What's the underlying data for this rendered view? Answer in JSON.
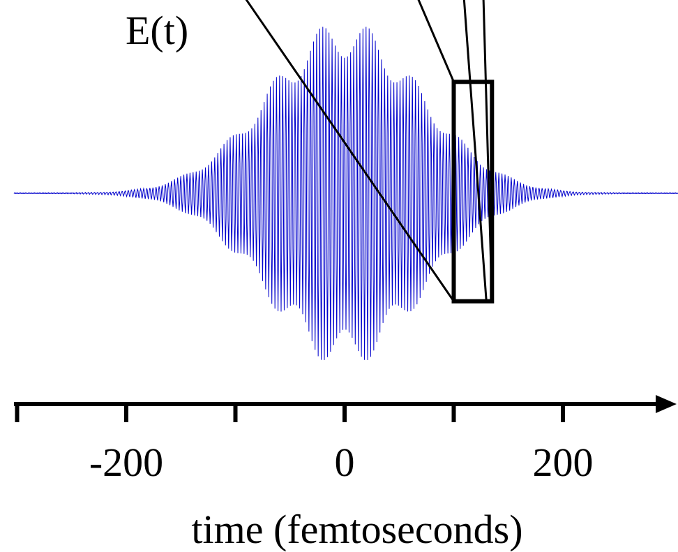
{
  "colors": {
    "waveform": "#0000cc",
    "axis": "#000000",
    "zoom_box": "#000000"
  },
  "chart_data": {
    "type": "line",
    "series": [
      {
        "name": "E(t)",
        "description_function": "gaussian-envelope carrier oscillation with beat pattern",
        "envelope_peak_time_fs": 0,
        "envelope_fwhm_fs": 165,
        "carrier_cycles_across_plot": 215,
        "beat_period_fs": 43,
        "beat_depth": 0.22,
        "amplitude": 1.0
      }
    ],
    "x_axis": {
      "label": "time (femtoseconds)",
      "range": [
        -305,
        305
      ],
      "ticks": [
        -300,
        -200,
        -100,
        0,
        100,
        200
      ],
      "tick_labels": [
        {
          "value": -200,
          "label": "-200"
        },
        {
          "value": 0,
          "label": "0"
        },
        {
          "value": 200,
          "label": "200"
        }
      ],
      "arrow": true
    },
    "y_axis": {
      "range": [
        -1.05,
        1.05
      ]
    },
    "zoom_box": {
      "x_range_fs": [
        100,
        135
      ],
      "y_range": [
        -0.62,
        0.64
      ]
    },
    "grid": false,
    "legend": "none"
  }
}
